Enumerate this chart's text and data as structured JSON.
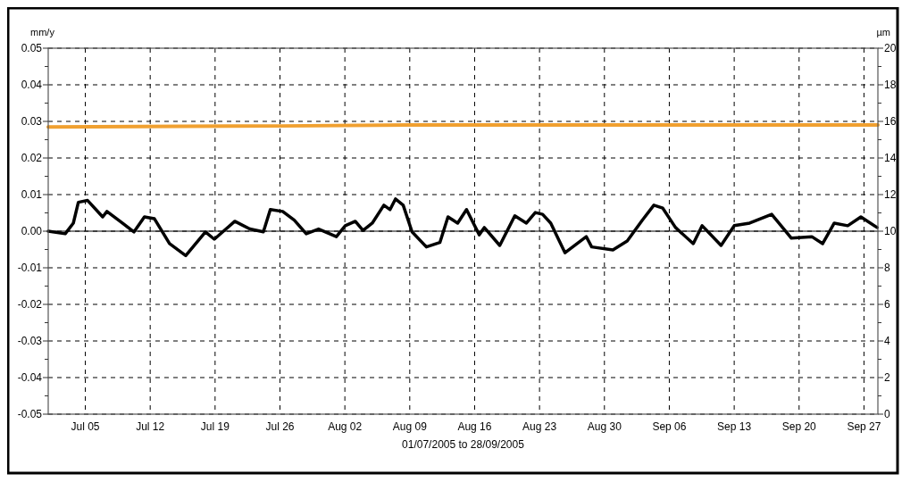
{
  "chart_data": {
    "type": "line",
    "xlabel": "01/07/2005 to 28/09/2005",
    "ylabel": "mm/y",
    "y2label": "µm",
    "xlim": [
      "2005-07-01",
      "2005-09-28T12:00"
    ],
    "xticks": [
      {
        "value": "2005-07-05",
        "label": "Jul 05"
      },
      {
        "value": "2005-07-12",
        "label": "Jul 12"
      },
      {
        "value": "2005-07-19",
        "label": "Jul 19"
      },
      {
        "value": "2005-07-26",
        "label": "Jul 26"
      },
      {
        "value": "2005-08-02",
        "label": "Aug 02"
      },
      {
        "value": "2005-08-09",
        "label": "Aug 09"
      },
      {
        "value": "2005-08-16",
        "label": "Aug 16"
      },
      {
        "value": "2005-08-23",
        "label": "Aug 23"
      },
      {
        "value": "2005-08-30",
        "label": "Aug 30"
      },
      {
        "value": "2005-09-06",
        "label": "Sep 06"
      },
      {
        "value": "2005-09-13",
        "label": "Sep 13"
      },
      {
        "value": "2005-09-20",
        "label": "Sep 20"
      },
      {
        "value": "2005-09-27",
        "label": "Sep 27"
      }
    ],
    "ylim": [
      -0.05,
      0.05
    ],
    "yticks": [
      {
        "value": -0.05,
        "label": "-0.05"
      },
      {
        "value": -0.045,
        "label": null
      },
      {
        "value": -0.04,
        "label": "-0.04"
      },
      {
        "value": -0.035,
        "label": null
      },
      {
        "value": -0.03,
        "label": "-0.03"
      },
      {
        "value": -0.025,
        "label": null
      },
      {
        "value": -0.02,
        "label": "-0.02"
      },
      {
        "value": -0.015,
        "label": null
      },
      {
        "value": -0.01,
        "label": "-0.01"
      },
      {
        "value": -0.005,
        "label": null
      },
      {
        "value": 0,
        "label": "0.00"
      },
      {
        "value": 0.005,
        "label": null
      },
      {
        "value": 0.01,
        "label": "0.01"
      },
      {
        "value": 0.015,
        "label": null
      },
      {
        "value": 0.02,
        "label": "0.02"
      },
      {
        "value": 0.025,
        "label": null
      },
      {
        "value": 0.03,
        "label": "0.03"
      },
      {
        "value": 0.035,
        "label": null
      },
      {
        "value": 0.04,
        "label": "0.04"
      },
      {
        "value": 0.045,
        "label": null
      },
      {
        "value": 0.05,
        "label": "0.05"
      }
    ],
    "y2lim": [
      0,
      20
    ],
    "y2ticks": [
      0,
      {
        "value": 1,
        "label": null
      },
      2,
      {
        "value": 3,
        "label": null
      },
      4,
      {
        "value": 5,
        "label": null
      },
      6,
      {
        "value": 7,
        "label": null
      },
      8,
      {
        "value": 9,
        "label": null
      },
      10,
      {
        "value": 11,
        "label": null
      },
      12,
      {
        "value": 13,
        "label": null
      },
      14,
      {
        "value": 15,
        "label": null
      },
      16,
      {
        "value": 17,
        "label": null
      },
      18,
      {
        "value": 19,
        "label": null
      },
      20
    ],
    "grid": true,
    "line_style": "solid",
    "ref_lines": [
      {
        "axis": "y",
        "value": 0,
        "color": "#000000",
        "line_style": "solid"
      }
    ],
    "series": [
      {
        "color": "#f0a030",
        "axis": "y2",
        "x": [
          "2005-07-01",
          "2005-07-26",
          "2005-08-09",
          "2005-09-28T12:00"
        ],
        "values": [
          15.7,
          15.75,
          15.8,
          15.8
        ]
      },
      {
        "color": "#000000",
        "axis": "y",
        "x": [
          "2005-07-01T00:00",
          "2005-07-02T20:00",
          "2005-07-03T17:00",
          "2005-07-04T06:00",
          "2005-07-05T06:00",
          "2005-07-06T21:00",
          "2005-07-07T08:00",
          "2005-07-09T00:00",
          "2005-07-10T06:00",
          "2005-07-11T09:00",
          "2005-07-12T11:00",
          "2005-07-14T02:00",
          "2005-07-15T20:00",
          "2005-07-17T23:00",
          "2005-07-18T22:00",
          "2005-07-21T03:00",
          "2005-07-22T18:00",
          "2005-07-24T05:00",
          "2005-07-24T23:00",
          "2005-07-26T07:00",
          "2005-07-27T13:00",
          "2005-07-28T20:00",
          "2005-07-30T04:00",
          "2005-08-01T02:00",
          "2005-08-02T01:00",
          "2005-08-03T03:00",
          "2005-08-03T23:00",
          "2005-08-04T23:00",
          "2005-08-06T05:00",
          "2005-08-06T21:00",
          "2005-08-07T11:00",
          "2005-08-08T07:00",
          "2005-08-09T06:00",
          "2005-08-10T19:00",
          "2005-08-12T06:00",
          "2005-08-13T03:00",
          "2005-08-14T04:00",
          "2005-08-15T03:00",
          "2005-08-16T12:00",
          "2005-08-17T01:00",
          "2005-08-18T17:00",
          "2005-08-20T08:00",
          "2005-08-21T14:00",
          "2005-08-22T13:00",
          "2005-08-23T08:00",
          "2005-08-24T05:00",
          "2005-08-25T18:00",
          "2005-08-28T01:00",
          "2005-08-28T15:00",
          "2005-08-30T22:00",
          "2005-09-01T11:00",
          "2005-09-03T02:00",
          "2005-09-04T08:00",
          "2005-09-05T07:00",
          "2005-09-06T16:00",
          "2005-09-08T14:00",
          "2005-09-09T13:00",
          "2005-09-11T14:00",
          "2005-09-13T00:00",
          "2005-09-14T16:00",
          "2005-09-17T01:00",
          "2005-09-19T04:00",
          "2005-09-21T09:00",
          "2005-09-22T13:00",
          "2005-09-23T19:00",
          "2005-09-25T06:00",
          "2005-09-26T16:00",
          "2005-09-28T10:00"
        ],
        "values": [
          0.0,
          -0.0007,
          0.0022,
          0.0079,
          0.0084,
          0.0039,
          0.0054,
          0.0022,
          -0.0002,
          0.0039,
          0.0034,
          -0.0034,
          -0.0067,
          -0.0002,
          -0.0022,
          0.0027,
          0.0006,
          -0.0002,
          0.0059,
          0.0054,
          0.003,
          -0.0007,
          0.0006,
          -0.0015,
          0.0015,
          0.0027,
          0.0002,
          0.0022,
          0.0071,
          0.0059,
          0.0088,
          0.0071,
          -0.0002,
          -0.0043,
          -0.0031,
          0.0039,
          0.0022,
          0.0059,
          -0.001,
          0.001,
          -0.0039,
          0.0042,
          0.0022,
          0.0051,
          0.0046,
          0.0022,
          -0.0059,
          -0.0015,
          -0.0043,
          -0.0051,
          -0.0027,
          0.003,
          0.0071,
          0.0063,
          0.001,
          -0.0034,
          0.0015,
          -0.0039,
          0.0015,
          0.0022,
          0.0046,
          -0.0019,
          -0.0015,
          -0.0034,
          0.0022,
          0.0015,
          0.0039,
          0.001
        ]
      }
    ]
  }
}
